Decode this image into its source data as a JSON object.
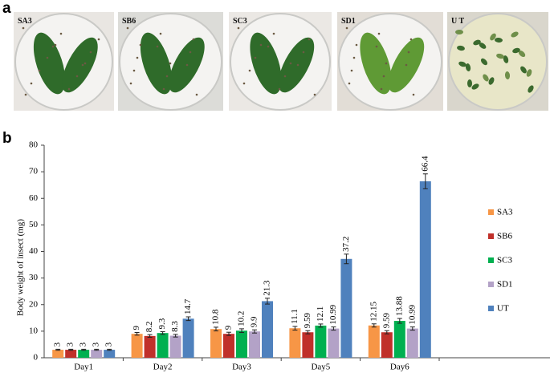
{
  "panel_labels": [
    "a",
    "b"
  ],
  "photo_labels": [
    "SA3",
    "SB6",
    "SC3",
    "SD1",
    "U T"
  ],
  "chart_data": {
    "type": "bar",
    "y_label": "Body weight of insect (mg)",
    "categories": [
      "Day1",
      "Day2",
      "Day3",
      "Day5",
      "Day6"
    ],
    "ylim": [
      0,
      80
    ],
    "yticks": [
      0,
      10,
      20,
      30,
      40,
      50,
      60,
      70,
      80
    ],
    "legend": "right",
    "series": [
      {
        "name": "SA3",
        "color": "#f79646",
        "values": [
          3,
          9,
          10.8,
          11.1,
          12.15
        ],
        "errors": [
          0.2,
          0.5,
          0.7,
          0.7,
          0.6
        ]
      },
      {
        "name": "SB6",
        "color": "#c0302a",
        "values": [
          3,
          8.2,
          9,
          9.59,
          9.59
        ],
        "errors": [
          0.2,
          0.5,
          0.6,
          0.6,
          0.6
        ]
      },
      {
        "name": "SC3",
        "color": "#00b050",
        "values": [
          3,
          9.3,
          10.2,
          12.1,
          13.88
        ],
        "errors": [
          0.2,
          0.5,
          0.7,
          0.6,
          0.9
        ]
      },
      {
        "name": "SD1",
        "color": "#b3a2c7",
        "values": [
          3,
          8.3,
          9.9,
          10.99,
          10.99
        ],
        "errors": [
          0.2,
          0.5,
          0.6,
          0.6,
          0.6
        ]
      },
      {
        "name": "UT",
        "color": "#4f81bd",
        "values": [
          3,
          14.7,
          21.3,
          37.2,
          66.4
        ],
        "errors": [
          0.2,
          0.7,
          1.1,
          1.8,
          2.8
        ]
      }
    ]
  }
}
